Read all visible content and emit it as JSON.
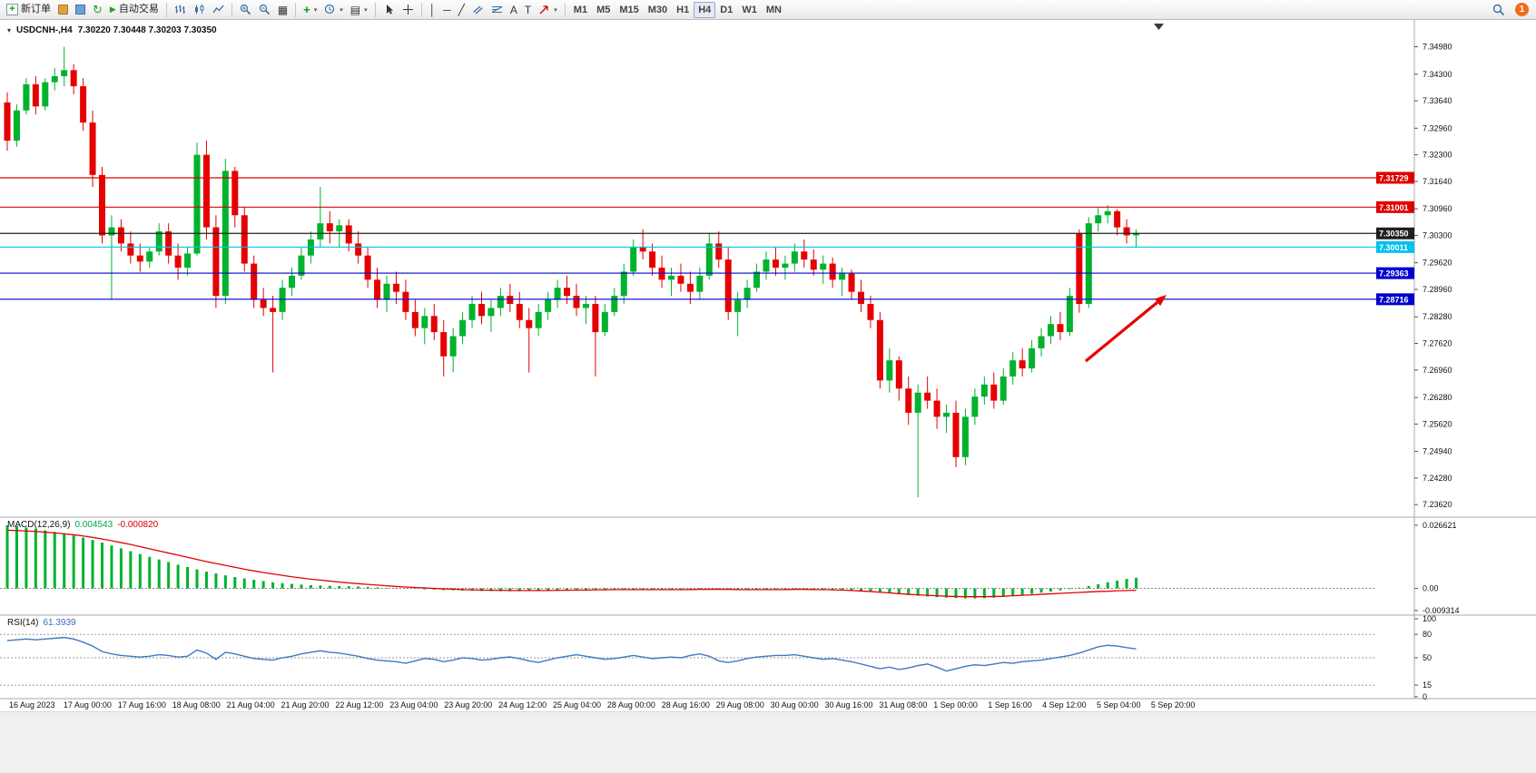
{
  "toolbar": {
    "new_order_label": "新订单",
    "auto_trading_label": "自动交易",
    "timeframes": [
      "M1",
      "M5",
      "M15",
      "M30",
      "H1",
      "H4",
      "D1",
      "W1",
      "MN"
    ],
    "active_timeframe": "H4",
    "notification_count": "1"
  },
  "icons": {
    "new_order_plus": "+",
    "refresh": "↻",
    "play": "▶",
    "tile": "▦",
    "indicator_plus": "+",
    "template": "▤",
    "caret": "▾",
    "vline": "│",
    "hline": "─",
    "trendline": "╱",
    "text_tool": "A",
    "label_tool": "T",
    "chart_menu": "▾"
  },
  "chart_data": {
    "type": "candlestick",
    "symbol_title": "USDCNH-,H4",
    "ohlc_text": "7.30220 7.30448 7.30203 7.30350",
    "up_color": "#00b22d",
    "down_color": "#e60000",
    "x_labels": [
      "16 Aug 2023",
      "17 Aug 00:00",
      "17 Aug 16:00",
      "18 Aug 08:00",
      "21 Aug 04:00",
      "21 Aug 20:00",
      "22 Aug 12:00",
      "23 Aug 04:00",
      "23 Aug 20:00",
      "24 Aug 12:00",
      "25 Aug 04:00",
      "28 Aug 00:00",
      "28 Aug 16:00",
      "29 Aug 08:00",
      "30 Aug 00:00",
      "30 Aug 16:00",
      "31 Aug 08:00",
      "1 Sep 00:00",
      "1 Sep 16:00",
      "4 Sep 12:00",
      "5 Sep 04:00",
      "5 Sep 20:00"
    ],
    "y_tick_labels": [
      "7.34980",
      "7.34300",
      "7.33640",
      "7.32960",
      "7.32300",
      "7.31640",
      "7.30960",
      "7.30300",
      "7.29620",
      "7.28960",
      "7.28280",
      "7.27620",
      "7.26960",
      "7.26280",
      "7.25620",
      "7.24940",
      "7.24280",
      "7.23620"
    ],
    "hlines": [
      {
        "price": 7.31729,
        "label": "7.31729",
        "color": "#e00000"
      },
      {
        "price": 7.31001,
        "label": "7.31001",
        "color": "#e00000"
      },
      {
        "price": 7.3035,
        "label": "7.30350",
        "color": "#1f1f1f"
      },
      {
        "price": 7.30011,
        "label": "7.30011",
        "color": "#00c0f0"
      },
      {
        "price": 7.29363,
        "label": "7.29363",
        "color": "#0000cd"
      },
      {
        "price": 7.28716,
        "label": "7.28716",
        "color": "#0000cd"
      }
    ],
    "candles": [
      [
        7.336,
        7.3385,
        7.324,
        7.3265
      ],
      [
        7.3265,
        7.3355,
        7.325,
        7.334
      ],
      [
        7.334,
        7.342,
        7.333,
        7.3405
      ],
      [
        7.3405,
        7.3425,
        7.333,
        7.335
      ],
      [
        7.335,
        7.342,
        7.334,
        7.341
      ],
      [
        7.341,
        7.3445,
        7.339,
        7.3425
      ],
      [
        7.3425,
        7.3498,
        7.34,
        7.344
      ],
      [
        7.344,
        7.3455,
        7.338,
        7.34
      ],
      [
        7.34,
        7.342,
        7.329,
        7.331
      ],
      [
        7.331,
        7.334,
        7.315,
        7.318
      ],
      [
        7.318,
        7.32,
        7.301,
        7.303
      ],
      [
        7.303,
        7.308,
        7.287,
        7.305
      ],
      [
        7.305,
        7.307,
        7.299,
        7.301
      ],
      [
        7.301,
        7.304,
        7.296,
        7.298
      ],
      [
        7.298,
        7.301,
        7.294,
        7.2965
      ],
      [
        7.2965,
        7.3,
        7.295,
        7.299
      ],
      [
        7.299,
        7.306,
        7.298,
        7.304
      ],
      [
        7.304,
        7.306,
        7.296,
        7.298
      ],
      [
        7.298,
        7.301,
        7.292,
        7.295
      ],
      [
        7.295,
        7.3,
        7.293,
        7.2985
      ],
      [
        7.2985,
        7.326,
        7.298,
        7.323
      ],
      [
        7.323,
        7.3265,
        7.302,
        7.305
      ],
      [
        7.305,
        7.308,
        7.285,
        7.288
      ],
      [
        7.288,
        7.322,
        7.286,
        7.319
      ],
      [
        7.319,
        7.32,
        7.305,
        7.308
      ],
      [
        7.308,
        7.31,
        7.294,
        7.296
      ],
      [
        7.296,
        7.298,
        7.285,
        7.287
      ],
      [
        7.287,
        7.29,
        7.283,
        7.285
      ],
      [
        7.285,
        7.288,
        7.269,
        7.284
      ],
      [
        7.284,
        7.292,
        7.282,
        7.29
      ],
      [
        7.29,
        7.295,
        7.288,
        7.293
      ],
      [
        7.293,
        7.3,
        7.292,
        7.298
      ],
      [
        7.298,
        7.304,
        7.296,
        7.302
      ],
      [
        7.302,
        7.315,
        7.3,
        7.306
      ],
      [
        7.306,
        7.309,
        7.301,
        7.304
      ],
      [
        7.304,
        7.307,
        7.3,
        7.3055
      ],
      [
        7.3055,
        7.307,
        7.299,
        7.301
      ],
      [
        7.301,
        7.304,
        7.296,
        7.298
      ],
      [
        7.298,
        7.3,
        7.29,
        7.292
      ],
      [
        7.292,
        7.295,
        7.285,
        7.287
      ],
      [
        7.287,
        7.293,
        7.284,
        7.291
      ],
      [
        7.291,
        7.294,
        7.286,
        7.289
      ],
      [
        7.289,
        7.292,
        7.282,
        7.284
      ],
      [
        7.284,
        7.287,
        7.278,
        7.28
      ],
      [
        7.28,
        7.285,
        7.276,
        7.283
      ],
      [
        7.283,
        7.286,
        7.277,
        7.279
      ],
      [
        7.279,
        7.282,
        7.268,
        7.273
      ],
      [
        7.273,
        7.28,
        7.269,
        7.278
      ],
      [
        7.278,
        7.284,
        7.276,
        7.282
      ],
      [
        7.282,
        7.288,
        7.28,
        7.286
      ],
      [
        7.286,
        7.289,
        7.281,
        7.283
      ],
      [
        7.283,
        7.287,
        7.279,
        7.285
      ],
      [
        7.285,
        7.29,
        7.283,
        7.288
      ],
      [
        7.288,
        7.291,
        7.284,
        7.286
      ],
      [
        7.286,
        7.289,
        7.28,
        7.282
      ],
      [
        7.282,
        7.285,
        7.269,
        7.28
      ],
      [
        7.28,
        7.286,
        7.278,
        7.284
      ],
      [
        7.284,
        7.289,
        7.282,
        7.287
      ],
      [
        7.287,
        7.292,
        7.285,
        7.29
      ],
      [
        7.29,
        7.293,
        7.286,
        7.288
      ],
      [
        7.288,
        7.291,
        7.283,
        7.285
      ],
      [
        7.285,
        7.288,
        7.281,
        7.286
      ],
      [
        7.286,
        7.288,
        7.268,
        7.279
      ],
      [
        7.279,
        7.286,
        7.278,
        7.284
      ],
      [
        7.284,
        7.29,
        7.283,
        7.288
      ],
      [
        7.288,
        7.296,
        7.286,
        7.294
      ],
      [
        7.294,
        7.302,
        7.293,
        7.3
      ],
      [
        7.3,
        7.3045,
        7.297,
        7.299
      ],
      [
        7.299,
        7.301,
        7.293,
        7.295
      ],
      [
        7.295,
        7.298,
        7.29,
        7.292
      ],
      [
        7.292,
        7.295,
        7.288,
        7.293
      ],
      [
        7.293,
        7.296,
        7.289,
        7.291
      ],
      [
        7.291,
        7.294,
        7.286,
        7.289
      ],
      [
        7.289,
        7.295,
        7.287,
        7.293
      ],
      [
        7.293,
        7.3035,
        7.292,
        7.301
      ],
      [
        7.301,
        7.304,
        7.295,
        7.297
      ],
      [
        7.297,
        7.3,
        7.282,
        7.284
      ],
      [
        7.284,
        7.289,
        7.278,
        7.287
      ],
      [
        7.287,
        7.292,
        7.285,
        7.29
      ],
      [
        7.29,
        7.296,
        7.289,
        7.294
      ],
      [
        7.294,
        7.299,
        7.292,
        7.297
      ],
      [
        7.297,
        7.3,
        7.293,
        7.295
      ],
      [
        7.295,
        7.298,
        7.292,
        7.296
      ],
      [
        7.296,
        7.301,
        7.294,
        7.299
      ],
      [
        7.299,
        7.302,
        7.295,
        7.297
      ],
      [
        7.297,
        7.2995,
        7.293,
        7.2945
      ],
      [
        7.2945,
        7.298,
        7.291,
        7.296
      ],
      [
        7.296,
        7.2975,
        7.29,
        7.292
      ],
      [
        7.292,
        7.295,
        7.288,
        7.2935
      ],
      [
        7.2935,
        7.2945,
        7.287,
        7.289
      ],
      [
        7.289,
        7.292,
        7.284,
        7.286
      ],
      [
        7.286,
        7.288,
        7.28,
        7.282
      ],
      [
        7.282,
        7.284,
        7.265,
        7.267
      ],
      [
        7.267,
        7.275,
        7.264,
        7.272
      ],
      [
        7.272,
        7.273,
        7.262,
        7.265
      ],
      [
        7.265,
        7.268,
        7.256,
        7.259
      ],
      [
        7.259,
        7.266,
        7.238,
        7.264
      ],
      [
        7.264,
        7.268,
        7.26,
        7.262
      ],
      [
        7.262,
        7.265,
        7.255,
        7.258
      ],
      [
        7.258,
        7.261,
        7.254,
        7.259
      ],
      [
        7.259,
        7.262,
        7.2455,
        7.248
      ],
      [
        7.248,
        7.26,
        7.246,
        7.258
      ],
      [
        7.258,
        7.265,
        7.256,
        7.263
      ],
      [
        7.263,
        7.268,
        7.261,
        7.266
      ],
      [
        7.266,
        7.269,
        7.26,
        7.262
      ],
      [
        7.262,
        7.27,
        7.261,
        7.268
      ],
      [
        7.268,
        7.274,
        7.266,
        7.272
      ],
      [
        7.272,
        7.275,
        7.268,
        7.27
      ],
      [
        7.27,
        7.277,
        7.269,
        7.275
      ],
      [
        7.275,
        7.28,
        7.273,
        7.278
      ],
      [
        7.278,
        7.283,
        7.276,
        7.281
      ],
      [
        7.281,
        7.284,
        7.277,
        7.279
      ],
      [
        7.279,
        7.29,
        7.278,
        7.288
      ],
      [
        7.3035,
        7.3045,
        7.2838,
        7.286
      ],
      [
        7.286,
        7.3075,
        7.285,
        7.306
      ],
      [
        7.306,
        7.31,
        7.304,
        7.308
      ],
      [
        7.308,
        7.3105,
        7.306,
        7.309
      ],
      [
        7.309,
        7.3095,
        7.303,
        7.305
      ],
      [
        7.305,
        7.307,
        7.301,
        7.303
      ],
      [
        7.303,
        7.3045,
        7.3,
        7.3035
      ]
    ],
    "macd": {
      "title": "MACD(12,26,9)",
      "value_main": "0.004543",
      "value_signal": "-0.000820",
      "hist_color": "#00b22d",
      "signal_color": "#e60000",
      "y_tick_labels": [
        "0.026621",
        "0.00",
        "-0.009314"
      ],
      "y_tick_values": [
        0.026621,
        0,
        -0.009314
      ],
      "histogram": [
        0.0266,
        0.0262,
        0.0257,
        0.0251,
        0.0245,
        0.0238,
        0.0231,
        0.0223,
        0.0214,
        0.0204,
        0.0193,
        0.0181,
        0.0169,
        0.0157,
        0.0145,
        0.0133,
        0.0122,
        0.0111,
        0.01,
        0.009,
        0.008,
        0.0071,
        0.0063,
        0.0055,
        0.0048,
        0.0042,
        0.0036,
        0.0031,
        0.0026,
        0.0022,
        0.0019,
        0.0016,
        0.0014,
        0.0012,
        0.0011,
        0.001,
        0.0009,
        0.0008,
        0.0006,
        0.0004,
        0.0002,
        0.0001,
        -0.0001,
        -0.0002,
        -0.0004,
        -0.0005,
        -0.0007,
        -0.0008,
        -0.0009,
        -0.001,
        -0.0011,
        -0.0011,
        -0.0012,
        -0.0012,
        -0.0012,
        -0.0011,
        -0.0011,
        -0.001,
        -0.001,
        -0.0009,
        -0.0009,
        -0.0008,
        -0.0007,
        -0.0007,
        -0.0006,
        -0.0005,
        -0.0004,
        -0.0004,
        -0.0004,
        -0.0005,
        -0.0005,
        -0.0005,
        -0.0005,
        -0.0004,
        -0.0003,
        -0.0003,
        -0.0004,
        -0.0005,
        -0.0006,
        -0.0006,
        -0.0005,
        -0.0005,
        -0.0004,
        -0.0004,
        -0.0004,
        -0.0005,
        -0.0005,
        -0.0006,
        -0.0007,
        -0.0008,
        -0.001,
        -0.0013,
        -0.0016,
        -0.002,
        -0.0024,
        -0.0028,
        -0.0031,
        -0.0034,
        -0.0037,
        -0.0039,
        -0.0041,
        -0.0042,
        -0.0042,
        -0.0041,
        -0.0039,
        -0.0036,
        -0.0032,
        -0.0028,
        -0.0023,
        -0.0018,
        -0.0013,
        -0.0008,
        -0.0003,
        0.0003,
        0.001,
        0.0018,
        0.0026,
        0.0033,
        0.004,
        0.0045
      ],
      "signal": [
        0.0245,
        0.0244,
        0.0242,
        0.024,
        0.0237,
        0.0234,
        0.023,
        0.0226,
        0.0221,
        0.0215,
        0.0208,
        0.0201,
        0.0193,
        0.0185,
        0.0176,
        0.0167,
        0.0158,
        0.0149,
        0.014,
        0.0131,
        0.0122,
        0.0113,
        0.0105,
        0.0097,
        0.0089,
        0.0081,
        0.0074,
        0.0067,
        0.0061,
        0.0055,
        0.0049,
        0.0044,
        0.0039,
        0.0035,
        0.0031,
        0.0027,
        0.0023,
        0.002,
        0.0017,
        0.0014,
        0.0011,
        0.0008,
        0.0006,
        0.0004,
        0.0002,
        0.0,
        -0.0002,
        -0.0003,
        -0.0005,
        -0.0006,
        -0.0007,
        -0.0008,
        -0.0008,
        -0.0009,
        -0.0009,
        -0.0009,
        -0.0009,
        -0.0009,
        -0.0008,
        -0.0008,
        -0.0007,
        -0.0007,
        -0.0006,
        -0.0006,
        -0.0005,
        -0.0005,
        -0.0005,
        -0.0005,
        -0.0005,
        -0.0005,
        -0.0005,
        -0.0005,
        -0.0005,
        -0.0004,
        -0.0004,
        -0.0004,
        -0.0004,
        -0.0005,
        -0.0005,
        -0.0005,
        -0.0005,
        -0.0005,
        -0.0005,
        -0.0004,
        -0.0004,
        -0.0005,
        -0.0005,
        -0.0006,
        -0.0007,
        -0.0009,
        -0.0011,
        -0.0013,
        -0.0016,
        -0.0019,
        -0.0022,
        -0.0025,
        -0.0027,
        -0.0029,
        -0.0031,
        -0.0033,
        -0.0034,
        -0.0035,
        -0.0035,
        -0.0035,
        -0.0034,
        -0.0033,
        -0.0031,
        -0.0029,
        -0.0027,
        -0.0025,
        -0.0023,
        -0.0021,
        -0.0019,
        -0.0017,
        -0.0015,
        -0.0013,
        -0.0012,
        -0.001,
        -0.0009,
        -0.0008
      ]
    },
    "rsi": {
      "title": "RSI(14)",
      "value": "61.3939",
      "color": "#3b7bbf",
      "levels": [
        80,
        50,
        15
      ],
      "y_tick_labels": [
        "100",
        "80",
        "50",
        "15",
        "0"
      ],
      "y_tick_values": [
        100,
        80,
        50,
        15,
        0
      ],
      "values": [
        72,
        73,
        74,
        73,
        74,
        75,
        76,
        74,
        70,
        65,
        58,
        55,
        53,
        52,
        51,
        52,
        54,
        53,
        51,
        52,
        60,
        56,
        48,
        57,
        55,
        52,
        49,
        48,
        47,
        50,
        52,
        55,
        57,
        59,
        57,
        56,
        54,
        52,
        49,
        47,
        46,
        45,
        43,
        46,
        49,
        48,
        45,
        47,
        50,
        49,
        47,
        48,
        50,
        51,
        49,
        46,
        44,
        47,
        50,
        52,
        54,
        52,
        50,
        48,
        49,
        51,
        53,
        51,
        49,
        50,
        51,
        50,
        53,
        55,
        52,
        46,
        44,
        46,
        49,
        51,
        52,
        53,
        53,
        54,
        52,
        50,
        48,
        49,
        47,
        45,
        42,
        39,
        36,
        38,
        35,
        37,
        40,
        42,
        38,
        33,
        36,
        39,
        41,
        40,
        42,
        44,
        43,
        45,
        46,
        47,
        49,
        51,
        53,
        56,
        60,
        64,
        66,
        65,
        63,
        61.4
      ]
    }
  }
}
